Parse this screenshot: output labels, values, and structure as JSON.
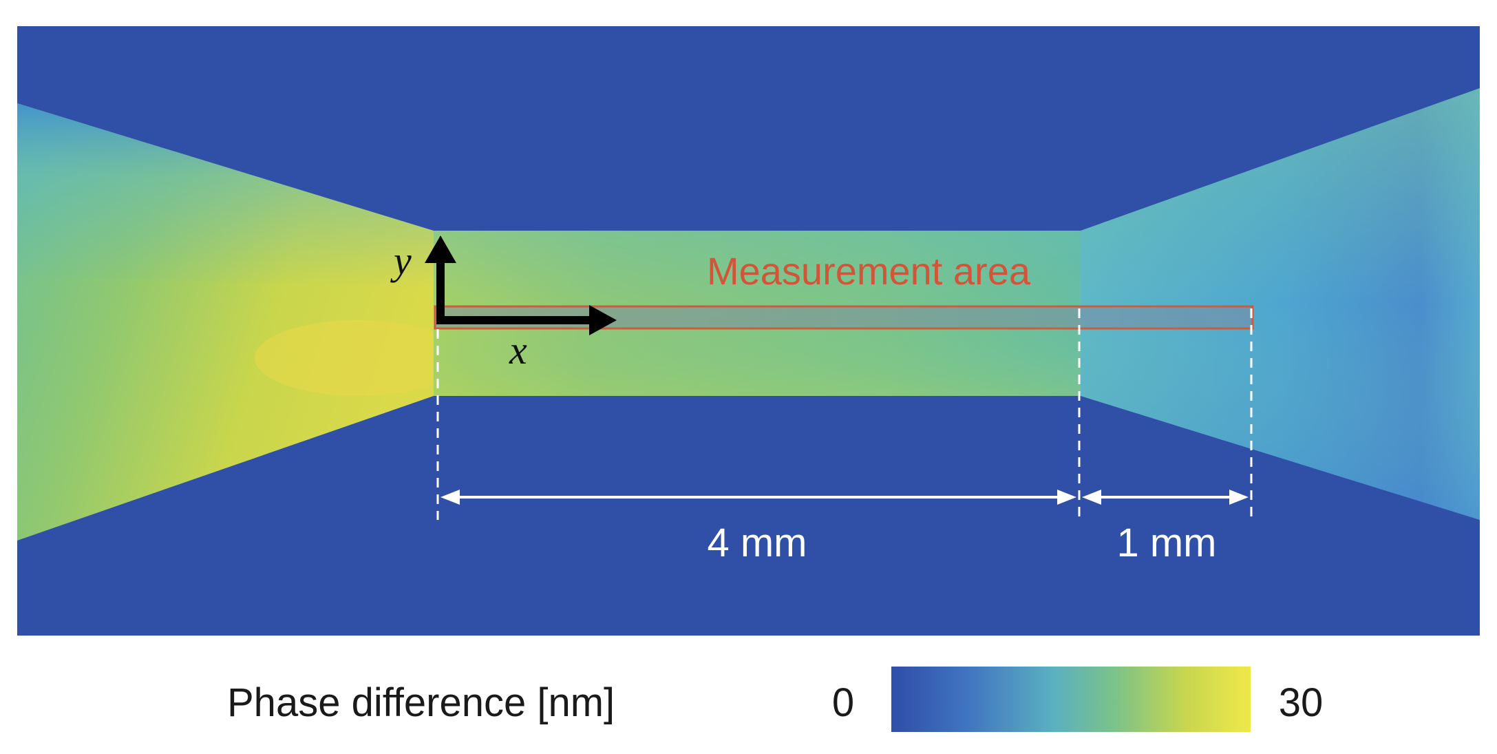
{
  "labels": {
    "measurement_area": "Measurement area",
    "axis_x": "x",
    "axis_y": "y",
    "dim_left": "4 mm",
    "dim_right": "1 mm"
  },
  "colorbar": {
    "title": "Phase difference [nm]",
    "min_label": "0",
    "max_label": "30",
    "colors": [
      "#2f4ea8",
      "#3f72c0",
      "#5ab0c0",
      "#7bc28a",
      "#c8d64e",
      "#f0e84a"
    ]
  },
  "colors": {
    "background_low": "#3050a8",
    "measurement_box_border": "#cf5a3c",
    "measurement_text": "#d2553a",
    "dimension_lines": "#ffffff",
    "axis_arrows": "#000000"
  }
}
